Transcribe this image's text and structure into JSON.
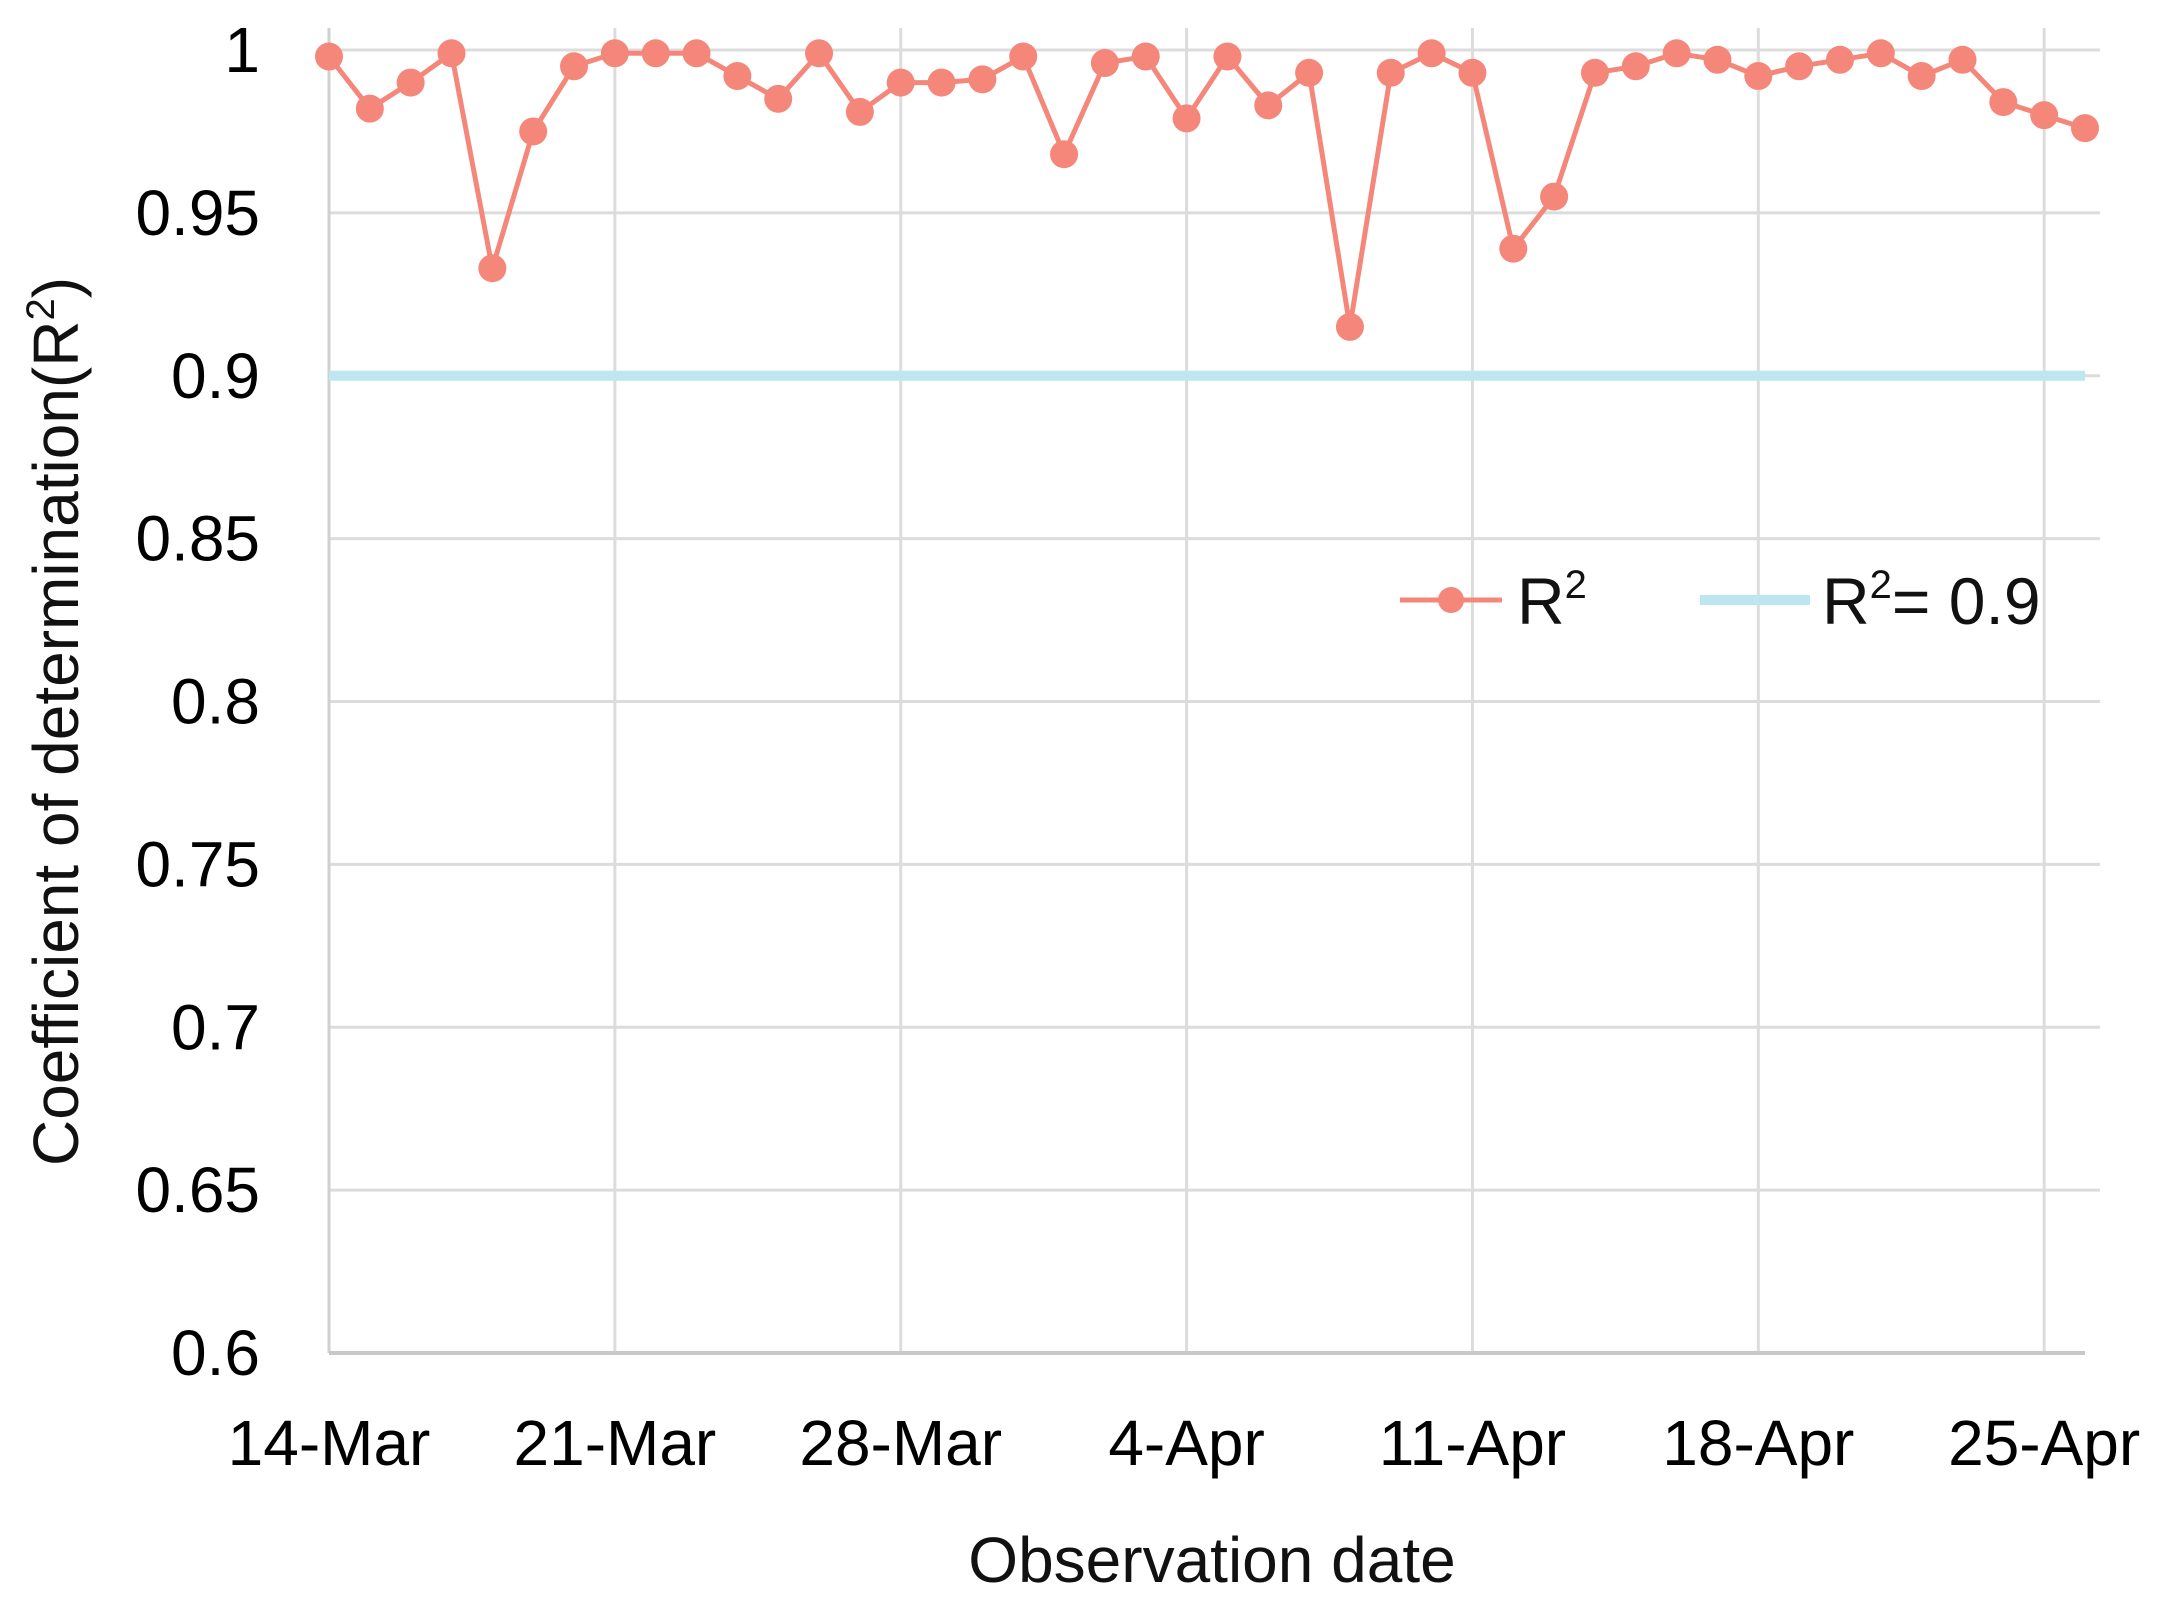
{
  "chart_data": {
    "type": "line",
    "xlabel": "Observation date",
    "ylabel": "Coefficient of determination(R²)",
    "ylabel_main": "Coefficient of determination(R",
    "ylabel_sup": "2",
    "ylabel_close": ")",
    "ylim": [
      0.6,
      1.0
    ],
    "xlim": [
      "2020-03-14",
      "2020-04-26"
    ],
    "yticks": [
      "0.6",
      "0.65",
      "0.7",
      "0.75",
      "0.8",
      "0.85",
      "0.9",
      "0.95",
      "1"
    ],
    "ytick_values": [
      0.6,
      0.65,
      0.7,
      0.75,
      0.8,
      0.85,
      0.9,
      0.95,
      1.0
    ],
    "xticks": [
      "14-Mar",
      "21-Mar",
      "28-Mar",
      "4-Apr",
      "11-Apr",
      "18-Apr",
      "25-Apr"
    ],
    "xtick_dates": [
      "2020-03-14",
      "2020-03-21",
      "2020-03-28",
      "2020-04-04",
      "2020-04-11",
      "2020-04-18",
      "2020-04-25"
    ],
    "grid": true,
    "legend_position": "center-right",
    "series": [
      {
        "name": "R²",
        "legend_main": "R",
        "legend_sup": "2",
        "color": "#f4877a",
        "marker": "circle",
        "x": [
          "2020-03-14",
          "2020-03-15",
          "2020-03-16",
          "2020-03-17",
          "2020-03-18",
          "2020-03-19",
          "2020-03-20",
          "2020-03-21",
          "2020-03-22",
          "2020-03-23",
          "2020-03-24",
          "2020-03-25",
          "2020-03-26",
          "2020-03-27",
          "2020-03-28",
          "2020-03-29",
          "2020-03-30",
          "2020-03-31",
          "2020-04-01",
          "2020-04-02",
          "2020-04-03",
          "2020-04-04",
          "2020-04-05",
          "2020-04-06",
          "2020-04-07",
          "2020-04-08",
          "2020-04-09",
          "2020-04-10",
          "2020-04-11",
          "2020-04-12",
          "2020-04-13",
          "2020-04-14",
          "2020-04-15",
          "2020-04-16",
          "2020-04-17",
          "2020-04-18",
          "2020-04-19",
          "2020-04-20",
          "2020-04-21",
          "2020-04-22",
          "2020-04-23",
          "2020-04-24",
          "2020-04-25",
          "2020-04-26"
        ],
        "values": [
          0.998,
          0.982,
          0.99,
          0.999,
          0.933,
          0.975,
          0.995,
          0.999,
          0.999,
          0.999,
          0.992,
          0.985,
          0.999,
          0.981,
          0.99,
          0.99,
          0.991,
          0.998,
          0.968,
          0.996,
          0.998,
          0.979,
          0.998,
          0.983,
          0.993,
          0.915,
          0.993,
          0.999,
          0.993,
          0.939,
          0.955,
          0.993,
          0.995,
          0.999,
          0.997,
          0.992,
          0.995,
          0.997,
          0.999,
          0.992,
          0.997,
          0.984,
          0.98,
          0.976
        ]
      },
      {
        "name": "R²= 0.9",
        "legend_main": "R",
        "legend_sup": "2",
        "legend_rest": "= 0.9",
        "color": "#bde6f0",
        "marker": "none",
        "x": [
          "2020-03-14",
          "2020-04-26"
        ],
        "values": [
          0.9,
          0.9
        ]
      }
    ]
  }
}
